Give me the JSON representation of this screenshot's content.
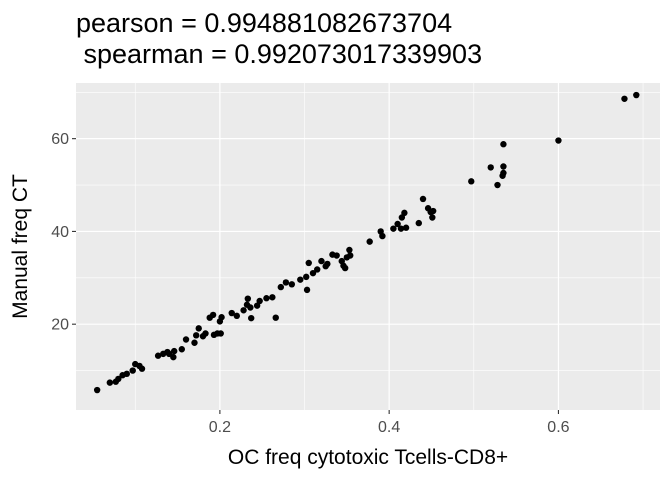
{
  "chart_data": {
    "type": "scatter",
    "title_lines": [
      "pearson = 0.994881082673704",
      " spearman = 0.992073017339903"
    ],
    "xlabel": "OC freq cytotoxic Tcells-CD8+",
    "ylabel": "Manual freq CT",
    "xlim": [
      0.03,
      0.72
    ],
    "ylim": [
      1.5,
      72
    ],
    "x_ticks": [
      0.2,
      0.4,
      0.6
    ],
    "x_tick_labels": [
      "0.2",
      "0.4",
      "0.6"
    ],
    "y_ticks": [
      20,
      40,
      60
    ],
    "y_tick_labels": [
      "20",
      "40",
      "60"
    ],
    "grid": true,
    "colors": {
      "panel_background": "#ebebeb",
      "grid": "#ffffff",
      "point": "#000000"
    },
    "points": [
      [
        0.055,
        5.8
      ],
      [
        0.07,
        7.4
      ],
      [
        0.077,
        7.6
      ],
      [
        0.08,
        8.2
      ],
      [
        0.085,
        9.0
      ],
      [
        0.09,
        9.3
      ],
      [
        0.097,
        10.0
      ],
      [
        0.1,
        11.4
      ],
      [
        0.105,
        11.0
      ],
      [
        0.108,
        10.4
      ],
      [
        0.127,
        13.2
      ],
      [
        0.133,
        13.6
      ],
      [
        0.138,
        14.0
      ],
      [
        0.14,
        13.6
      ],
      [
        0.145,
        12.9
      ],
      [
        0.146,
        14.2
      ],
      [
        0.155,
        14.6
      ],
      [
        0.16,
        16.7
      ],
      [
        0.17,
        16.0
      ],
      [
        0.172,
        17.6
      ],
      [
        0.175,
        19.1
      ],
      [
        0.18,
        17.4
      ],
      [
        0.183,
        18.0
      ],
      [
        0.188,
        21.4
      ],
      [
        0.192,
        22.0
      ],
      [
        0.193,
        17.7
      ],
      [
        0.197,
        18.0
      ],
      [
        0.2,
        20.6
      ],
      [
        0.201,
        18.0
      ],
      [
        0.202,
        21.5
      ],
      [
        0.214,
        22.4
      ],
      [
        0.22,
        21.8
      ],
      [
        0.228,
        23.0
      ],
      [
        0.232,
        24.2
      ],
      [
        0.233,
        25.5
      ],
      [
        0.236,
        23.6
      ],
      [
        0.237,
        21.3
      ],
      [
        0.244,
        24.0
      ],
      [
        0.247,
        25.0
      ],
      [
        0.255,
        25.6
      ],
      [
        0.262,
        25.8
      ],
      [
        0.266,
        21.4
      ],
      [
        0.272,
        28.0
      ],
      [
        0.278,
        29.0
      ],
      [
        0.285,
        28.6
      ],
      [
        0.295,
        29.6
      ],
      [
        0.302,
        30.2
      ],
      [
        0.303,
        27.4
      ],
      [
        0.305,
        33.2
      ],
      [
        0.31,
        31.0
      ],
      [
        0.315,
        31.8
      ],
      [
        0.32,
        33.6
      ],
      [
        0.325,
        32.5
      ],
      [
        0.327,
        33.0
      ],
      [
        0.333,
        35.0
      ],
      [
        0.338,
        34.8
      ],
      [
        0.344,
        33.6
      ],
      [
        0.346,
        32.6
      ],
      [
        0.348,
        32.1
      ],
      [
        0.35,
        34.4
      ],
      [
        0.353,
        36.0
      ],
      [
        0.354,
        34.8
      ],
      [
        0.377,
        37.8
      ],
      [
        0.39,
        40.0
      ],
      [
        0.392,
        39.0
      ],
      [
        0.405,
        40.6
      ],
      [
        0.41,
        41.6
      ],
      [
        0.414,
        40.6
      ],
      [
        0.415,
        43.0
      ],
      [
        0.418,
        44.0
      ],
      [
        0.42,
        40.8
      ],
      [
        0.435,
        41.8
      ],
      [
        0.44,
        47.0
      ],
      [
        0.446,
        45.0
      ],
      [
        0.449,
        44.2
      ],
      [
        0.451,
        43.0
      ],
      [
        0.452,
        44.4
      ],
      [
        0.497,
        50.8
      ],
      [
        0.52,
        53.8
      ],
      [
        0.528,
        50.0
      ],
      [
        0.534,
        52.0
      ],
      [
        0.535,
        52.6
      ],
      [
        0.535,
        54.0
      ],
      [
        0.535,
        58.8
      ],
      [
        0.6,
        59.6
      ],
      [
        0.678,
        68.6
      ],
      [
        0.692,
        69.4
      ]
    ]
  }
}
